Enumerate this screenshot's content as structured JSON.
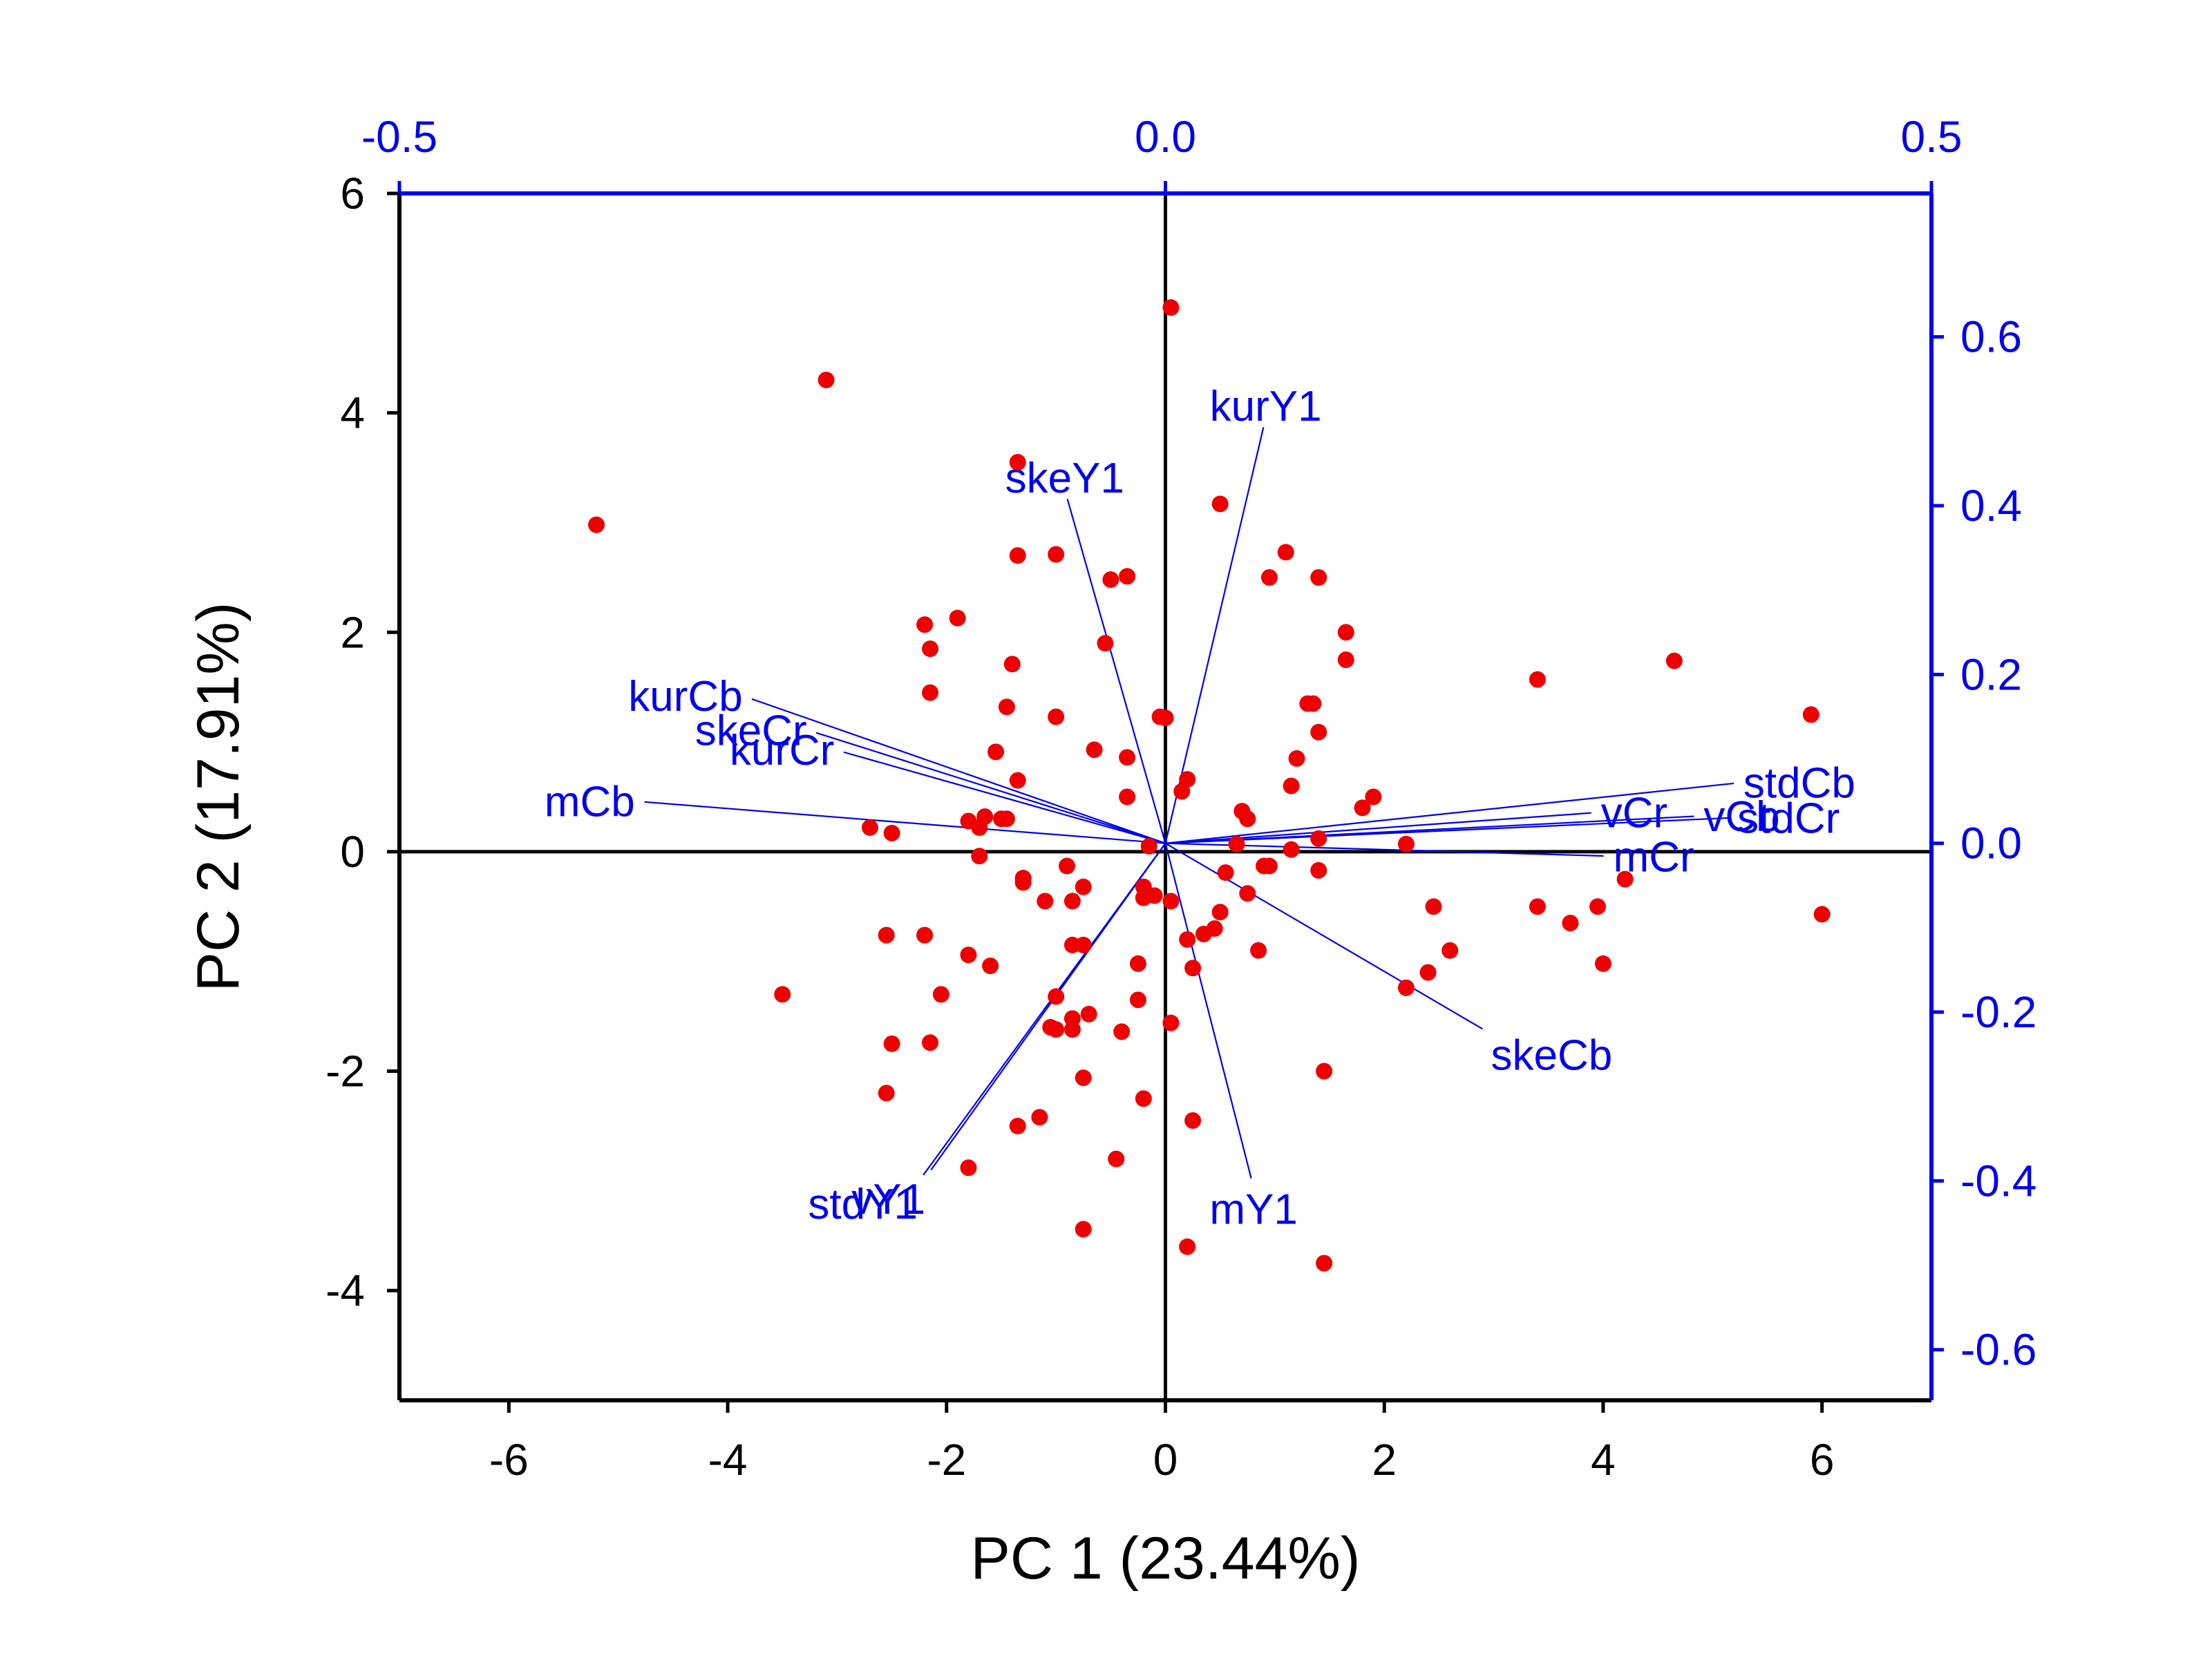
{
  "chart_data": {
    "type": "scatter",
    "subtype": "pca-biplot",
    "xlabel": "PC 1 (23.44%)",
    "ylabel": "PC 2 (17.91%)",
    "xlim": [
      -7,
      7
    ],
    "ylim": [
      -5,
      6
    ],
    "x_ticks": [
      -6,
      -4,
      -2,
      0,
      2,
      4,
      6
    ],
    "y_ticks": [
      -4,
      -2,
      0,
      2,
      4,
      6
    ],
    "x_tick_labels": [
      "-6",
      "-4",
      "-2",
      "0",
      "2",
      "4",
      "6"
    ],
    "y_tick_labels": [
      "-4",
      "-2",
      "0",
      "2",
      "4",
      "6"
    ],
    "secondary_xlim": [
      -0.5,
      0.5
    ],
    "secondary_ylim": [
      -0.66,
      0.77
    ],
    "secondary_x_ticks": [
      -0.5,
      0.0,
      0.5
    ],
    "secondary_y_ticks": [
      -0.6,
      -0.4,
      -0.2,
      0.0,
      0.2,
      0.4,
      0.6
    ],
    "secondary_x_tick_labels": [
      "-0.5",
      "0.0",
      "0.5"
    ],
    "secondary_y_tick_labels": [
      "-0.6",
      "-0.4",
      "-0.2",
      "0.0",
      "0.2",
      "0.4",
      "0.6"
    ],
    "grid": false,
    "reference_lines": [
      "x=0",
      "y=0"
    ],
    "colors": {
      "points": "#ee0000",
      "loadings": "#0000ee",
      "axes": "#000000",
      "secondary_axes": "#0000ee"
    },
    "scores": [
      [
        0.05,
        4.96
      ],
      [
        -3.1,
        4.3
      ],
      [
        -5.2,
        2.98
      ],
      [
        -1.35,
        3.55
      ],
      [
        0.5,
        3.17
      ],
      [
        -1.35,
        2.7
      ],
      [
        -1.0,
        2.71
      ],
      [
        1.1,
        2.73
      ],
      [
        0.95,
        2.5
      ],
      [
        1.4,
        2.5
      ],
      [
        -0.5,
        2.48
      ],
      [
        -0.35,
        2.51
      ],
      [
        -2.2,
        2.07
      ],
      [
        -1.9,
        2.13
      ],
      [
        1.65,
        2.0
      ],
      [
        -2.15,
        1.85
      ],
      [
        -0.55,
        1.9
      ],
      [
        -1.4,
        1.71
      ],
      [
        1.65,
        1.75
      ],
      [
        3.4,
        1.57
      ],
      [
        4.65,
        1.74
      ],
      [
        -2.15,
        1.45
      ],
      [
        -1.45,
        1.32
      ],
      [
        -1.0,
        1.23
      ],
      [
        -0.05,
        1.23
      ],
      [
        0.0,
        1.22
      ],
      [
        1.3,
        1.35
      ],
      [
        1.35,
        1.35
      ],
      [
        5.9,
        1.25
      ],
      [
        1.4,
        1.09
      ],
      [
        -1.55,
        0.91
      ],
      [
        -0.65,
        0.93
      ],
      [
        -0.35,
        0.86
      ],
      [
        1.2,
        0.85
      ],
      [
        -1.35,
        0.65
      ],
      [
        0.2,
        0.66
      ],
      [
        1.15,
        0.6
      ],
      [
        0.15,
        0.55
      ],
      [
        -0.35,
        0.5
      ],
      [
        1.9,
        0.5
      ],
      [
        0.7,
        0.37
      ],
      [
        0.75,
        0.3
      ],
      [
        1.8,
        0.4
      ],
      [
        -1.65,
        0.32
      ],
      [
        -1.5,
        0.3
      ],
      [
        -1.45,
        0.3
      ],
      [
        -1.8,
        0.28
      ],
      [
        -1.7,
        0.22
      ],
      [
        -2.7,
        0.22
      ],
      [
        -2.5,
        0.17
      ],
      [
        1.4,
        0.12
      ],
      [
        -0.15,
        0.05
      ],
      [
        0.65,
        0.07
      ],
      [
        2.2,
        0.07
      ],
      [
        1.15,
        0.02
      ],
      [
        -1.7,
        -0.04
      ],
      [
        0.9,
        -0.13
      ],
      [
        0.95,
        -0.13
      ],
      [
        -0.9,
        -0.13
      ],
      [
        -1.3,
        -0.24
      ],
      [
        0.55,
        -0.19
      ],
      [
        1.4,
        -0.17
      ],
      [
        -1.3,
        -0.28
      ],
      [
        -0.75,
        -0.32
      ],
      [
        -0.2,
        -0.32
      ],
      [
        -0.1,
        -0.4
      ],
      [
        0.05,
        -0.45
      ],
      [
        -1.1,
        -0.45
      ],
      [
        -0.2,
        -0.42
      ],
      [
        0.75,
        -0.38
      ],
      [
        -0.85,
        -0.45
      ],
      [
        3.4,
        -0.5
      ],
      [
        3.95,
        -0.5
      ],
      [
        2.45,
        -0.5
      ],
      [
        0.5,
        -0.55
      ],
      [
        3.7,
        -0.65
      ],
      [
        0.45,
        -0.7
      ],
      [
        -2.55,
        -0.76
      ],
      [
        -2.2,
        -0.76
      ],
      [
        0.35,
        -0.75
      ],
      [
        4.2,
        -0.25
      ],
      [
        0.2,
        -0.8
      ],
      [
        -0.85,
        -0.85
      ],
      [
        -0.75,
        -0.85
      ],
      [
        2.6,
        -0.9
      ],
      [
        0.85,
        -0.9
      ],
      [
        6.0,
        -0.57
      ],
      [
        -1.8,
        -0.94
      ],
      [
        -1.6,
        -1.04
      ],
      [
        -0.25,
        -1.02
      ],
      [
        0.25,
        -1.06
      ],
      [
        4.0,
        -1.02
      ],
      [
        2.4,
        -1.1
      ],
      [
        -3.5,
        -1.3
      ],
      [
        -2.05,
        -1.3
      ],
      [
        2.2,
        -1.24
      ],
      [
        -1.0,
        -1.32
      ],
      [
        -0.25,
        -1.35
      ],
      [
        -0.7,
        -1.48
      ],
      [
        -0.85,
        -1.52
      ],
      [
        -1.0,
        -1.62
      ],
      [
        -0.85,
        -1.62
      ],
      [
        -1.05,
        -1.6
      ],
      [
        0.05,
        -1.56
      ],
      [
        -0.4,
        -1.64
      ],
      [
        -2.5,
        -1.75
      ],
      [
        -2.15,
        -1.74
      ],
      [
        -0.75,
        -2.06
      ],
      [
        1.45,
        -2.0
      ],
      [
        -2.55,
        -2.2
      ],
      [
        -0.2,
        -2.25
      ],
      [
        -1.15,
        -2.42
      ],
      [
        -1.35,
        -2.5
      ],
      [
        0.25,
        -2.45
      ],
      [
        -0.45,
        -2.8
      ],
      [
        -1.8,
        -2.88
      ],
      [
        -0.75,
        -3.44
      ],
      [
        0.2,
        -3.6
      ],
      [
        1.45,
        -3.75
      ]
    ],
    "loadings": [
      {
        "label": "mCb",
        "x": -0.34,
        "y": 0.049
      },
      {
        "label": "kurCb",
        "x": -0.27,
        "y": 0.171
      },
      {
        "label": "skeCr",
        "x": -0.228,
        "y": 0.131
      },
      {
        "label": "kurCr",
        "x": -0.21,
        "y": 0.108
      },
      {
        "label": "skeY1",
        "x": -0.064,
        "y": 0.408
      },
      {
        "label": "kurY1",
        "x": 0.064,
        "y": 0.493
      },
      {
        "label": "vCr",
        "x": 0.278,
        "y": 0.036
      },
      {
        "label": "stdCb",
        "x": 0.371,
        "y": 0.071
      },
      {
        "label": "stdCr",
        "x": 0.367,
        "y": 0.03
      },
      {
        "label": "vCb",
        "x": 0.345,
        "y": 0.032
      },
      {
        "label": "mCr",
        "x": 0.286,
        "y": -0.015
      },
      {
        "label": "skeCb",
        "x": 0.207,
        "y": -0.22
      },
      {
        "label": "mY1",
        "x": 0.056,
        "y": -0.397
      },
      {
        "label": "vY1",
        "x": -0.153,
        "y": -0.387
      },
      {
        "label": "stdY1",
        "x": -0.158,
        "y": -0.393
      }
    ]
  }
}
